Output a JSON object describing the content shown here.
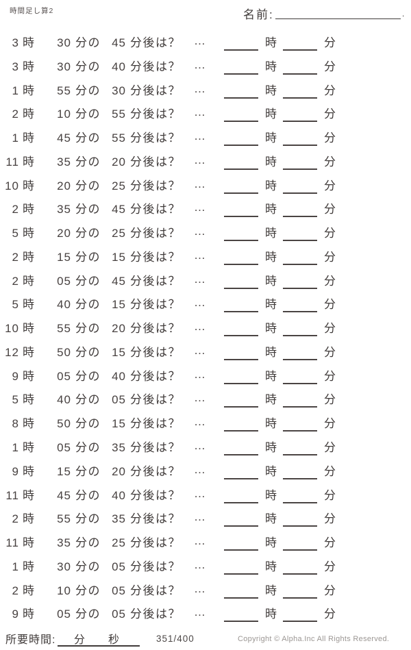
{
  "header": {
    "title": "時間足し算2",
    "name_label": "名前:",
    "name_line_end": "."
  },
  "labels": {
    "hour_unit": "時",
    "min_unit": "分",
    "min_no": "分の",
    "after_suffix": "分後は？",
    "ellipsis": "…"
  },
  "problems": [
    {
      "hour": "3",
      "min": "30",
      "delta": "45"
    },
    {
      "hour": "3",
      "min": "30",
      "delta": "40"
    },
    {
      "hour": "1",
      "min": "55",
      "delta": "30"
    },
    {
      "hour": "2",
      "min": "10",
      "delta": "55"
    },
    {
      "hour": "1",
      "min": "45",
      "delta": "55"
    },
    {
      "hour": "11",
      "min": "35",
      "delta": "20"
    },
    {
      "hour": "10",
      "min": "20",
      "delta": "25"
    },
    {
      "hour": "2",
      "min": "35",
      "delta": "45"
    },
    {
      "hour": "5",
      "min": "20",
      "delta": "25"
    },
    {
      "hour": "2",
      "min": "15",
      "delta": "15"
    },
    {
      "hour": "2",
      "min": "05",
      "delta": "45"
    },
    {
      "hour": "5",
      "min": "40",
      "delta": "15"
    },
    {
      "hour": "10",
      "min": "55",
      "delta": "20"
    },
    {
      "hour": "12",
      "min": "50",
      "delta": "15"
    },
    {
      "hour": "9",
      "min": "05",
      "delta": "40"
    },
    {
      "hour": "5",
      "min": "40",
      "delta": "05"
    },
    {
      "hour": "8",
      "min": "50",
      "delta": "15"
    },
    {
      "hour": "1",
      "min": "05",
      "delta": "35"
    },
    {
      "hour": "9",
      "min": "15",
      "delta": "20"
    },
    {
      "hour": "11",
      "min": "45",
      "delta": "40"
    },
    {
      "hour": "2",
      "min": "55",
      "delta": "35"
    },
    {
      "hour": "11",
      "min": "35",
      "delta": "25"
    },
    {
      "hour": "1",
      "min": "30",
      "delta": "05"
    },
    {
      "hour": "2",
      "min": "10",
      "delta": "05"
    },
    {
      "hour": "9",
      "min": "05",
      "delta": "05"
    }
  ],
  "footer": {
    "time_label": "所要時間:",
    "min_label": "分",
    "sec_label": "秒",
    "page": "351/400",
    "copyright": "Copyright ©  Alpha.Inc All Rights Reserved."
  }
}
